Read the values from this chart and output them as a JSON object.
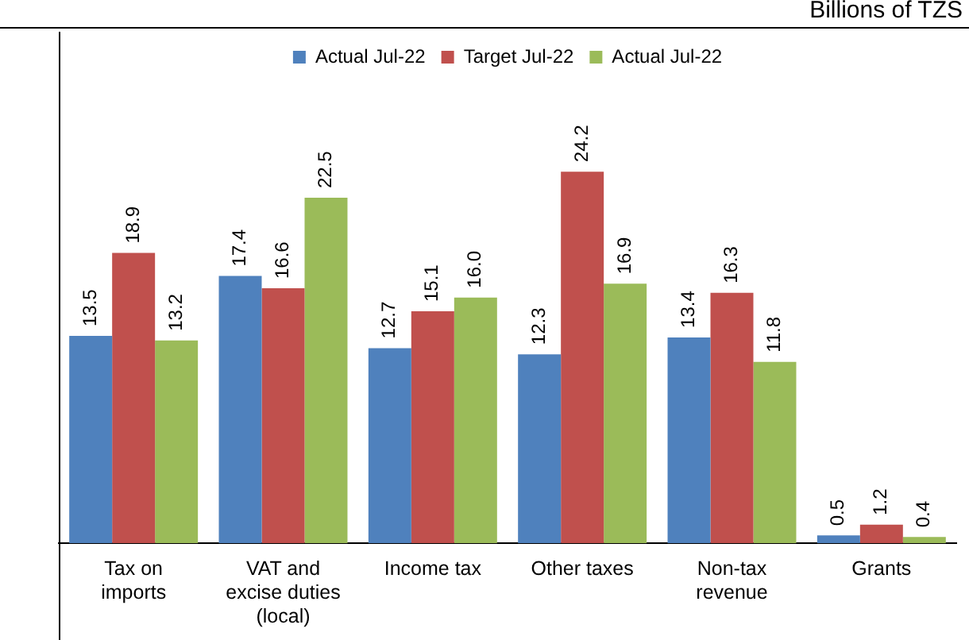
{
  "chart_data": {
    "type": "bar",
    "subtitle": "Billions of TZS",
    "categories": [
      "Tax on\nimports",
      "VAT and\nexcise duties\n(local)",
      "Income tax",
      "Other taxes",
      "Non-tax\nrevenue",
      "Grants"
    ],
    "series": [
      {
        "name": "Actual Jul-22",
        "color": "#4f81bd",
        "values": [
          13.5,
          17.4,
          12.7,
          12.3,
          13.4,
          0.5
        ],
        "value_labels": [
          "13.5",
          "17.4",
          "12.7",
          "12.3",
          "13.4",
          "0.5"
        ]
      },
      {
        "name": "Target Jul-22",
        "color": "#c0504d",
        "values": [
          18.9,
          16.6,
          15.1,
          24.2,
          16.3,
          1.2
        ],
        "value_labels": [
          "18.9",
          "16.6",
          "15.1",
          "24.2",
          "16.3",
          "1.2"
        ]
      },
      {
        "name": "Actual Jul-22",
        "color": "#9bbb59",
        "values": [
          13.2,
          22.5,
          16.0,
          16.9,
          11.8,
          0.4
        ],
        "value_labels": [
          "13.2",
          "22.5",
          "16.0",
          "16.9",
          "11.8",
          "0.4"
        ]
      }
    ],
    "legend": "top"
  }
}
